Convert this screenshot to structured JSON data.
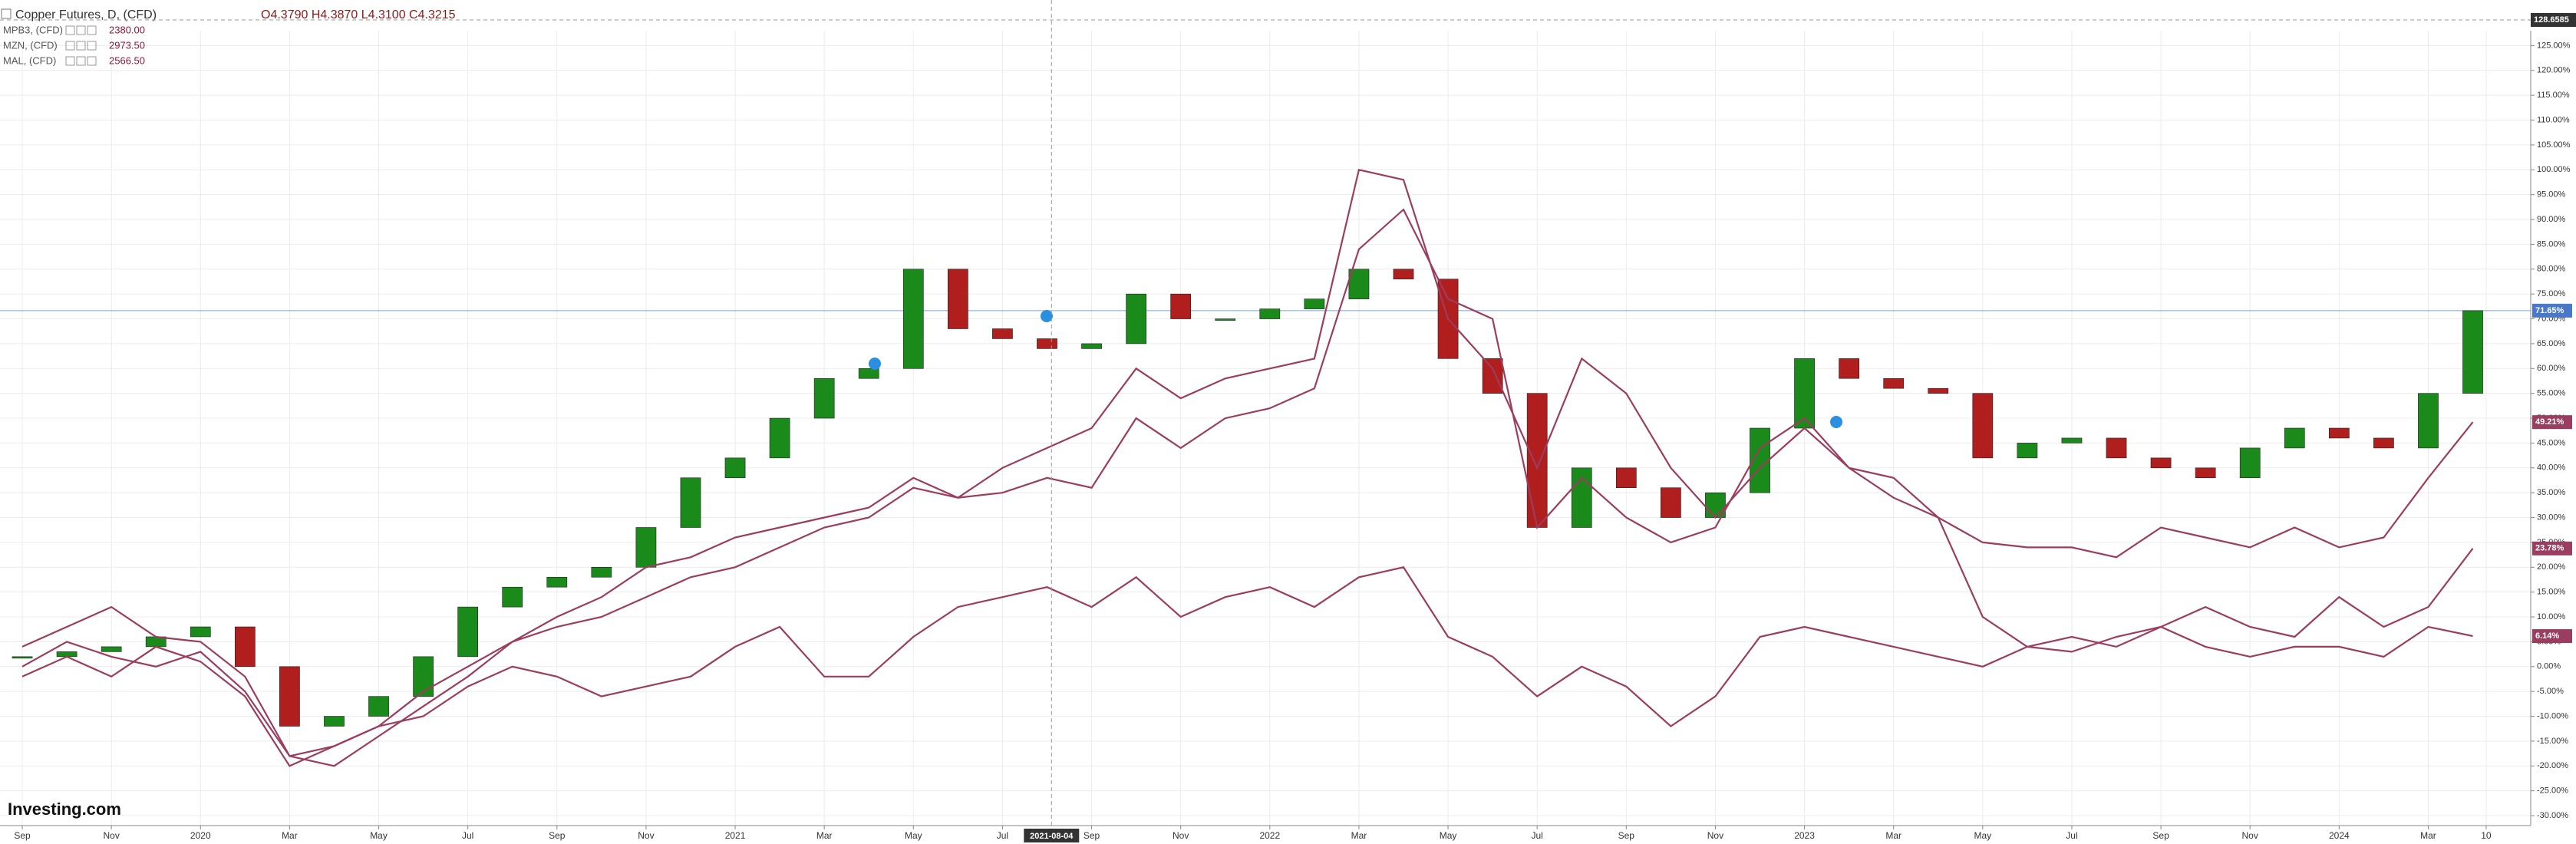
{
  "chart_data": {
    "type": "candle_compare",
    "legend": {
      "main": "Copper Futures, D, (CFD)",
      "ohlc": "O4.3790  H4.3870  L4.3100  C4.3215"
    },
    "crosshair_label": "128.6585",
    "logo": "Investing.com",
    "x": [
      0,
      1,
      2,
      3,
      4,
      5,
      6,
      7,
      8,
      9,
      10,
      11,
      12,
      13,
      14,
      15,
      16,
      17,
      18,
      19,
      20,
      21,
      22,
      23,
      24,
      25,
      26,
      27,
      28,
      29,
      30,
      31,
      32,
      33,
      34,
      35,
      36,
      37,
      38,
      39,
      40,
      41,
      42,
      43,
      44,
      45,
      46,
      47,
      48,
      49,
      50,
      51,
      52,
      53,
      54,
      55
    ],
    "xlim": [
      -0.5,
      56.3
    ],
    "xticks": [
      {
        "value": 0,
        "label": "Sep"
      },
      {
        "value": 2,
        "label": "Nov"
      },
      {
        "value": 4,
        "label": "2020"
      },
      {
        "value": 6,
        "label": "Mar"
      },
      {
        "value": 8,
        "label": "May"
      },
      {
        "value": 10,
        "label": "Jul"
      },
      {
        "value": 12,
        "label": "Sep"
      },
      {
        "value": 14,
        "label": "Nov"
      },
      {
        "value": 16,
        "label": "2021"
      },
      {
        "value": 18,
        "label": "Mar"
      },
      {
        "value": 20,
        "label": "May"
      },
      {
        "value": 22,
        "label": "Jul"
      },
      {
        "value": 23.1,
        "label": "2021-08-04"
      },
      {
        "value": 24,
        "label": "Sep"
      },
      {
        "value": 26,
        "label": "Nov"
      },
      {
        "value": 28,
        "label": "2022"
      },
      {
        "value": 30,
        "label": "Mar"
      },
      {
        "value": 32,
        "label": "May"
      },
      {
        "value": 34,
        "label": "Jul"
      },
      {
        "value": 36,
        "label": "Sep"
      },
      {
        "value": 38,
        "label": "Nov"
      },
      {
        "value": 40,
        "label": "2023"
      },
      {
        "value": 42,
        "label": "Mar"
      },
      {
        "value": 44,
        "label": "May"
      },
      {
        "value": 46,
        "label": "Jul"
      },
      {
        "value": 48,
        "label": "Sep"
      },
      {
        "value": 50,
        "label": "Nov"
      },
      {
        "value": 52,
        "label": "2024"
      },
      {
        "value": 54,
        "label": "Mar"
      },
      {
        "value": 55.3,
        "label": "10"
      }
    ],
    "crosshair_xtick": 12,
    "ylim": [
      -32,
      128
    ],
    "yticks": [
      {
        "value": -30,
        "label": "-30.00%"
      },
      {
        "value": -25,
        "label": "-25.00%"
      },
      {
        "value": -20,
        "label": "-20.00%"
      },
      {
        "value": -15,
        "label": "-15.00%"
      },
      {
        "value": -10,
        "label": "-10.00%"
      },
      {
        "value": -5,
        "label": "-5.00%"
      },
      {
        "value": 0,
        "label": "0.00%"
      },
      {
        "value": 5,
        "label": "5.00%"
      },
      {
        "value": 10,
        "label": "10.00%"
      },
      {
        "value": 15,
        "label": "15.00%"
      },
      {
        "value": 20,
        "label": "20.00%"
      },
      {
        "value": 25,
        "label": "25.00%"
      },
      {
        "value": 30,
        "label": "30.00%"
      },
      {
        "value": 35,
        "label": "35.00%"
      },
      {
        "value": 40,
        "label": "40.00%"
      },
      {
        "value": 45,
        "label": "45.00%"
      },
      {
        "value": 50,
        "label": "50.00%"
      },
      {
        "value": 55,
        "label": "55.00%"
      },
      {
        "value": 60,
        "label": "60.00%"
      },
      {
        "value": 65,
        "label": "65.00%"
      },
      {
        "value": 70,
        "label": "70.00%"
      },
      {
        "value": 75,
        "label": "75.00%"
      },
      {
        "value": 80,
        "label": "80.00%"
      },
      {
        "value": 85,
        "label": "85.00%"
      },
      {
        "value": 90,
        "label": "90.00%"
      },
      {
        "value": 95,
        "label": "95.00%"
      },
      {
        "value": 100,
        "label": "100.00%"
      },
      {
        "value": 105,
        "label": "105.00%"
      },
      {
        "value": 110,
        "label": "110.00%"
      },
      {
        "value": 115,
        "label": "115.00%"
      },
      {
        "value": 120,
        "label": "120.00%"
      },
      {
        "value": 125,
        "label": "125.00%"
      }
    ],
    "grid": true,
    "series": [
      {
        "name": "Copper Futures",
        "style": "candles",
        "up_color": "#1a8a1a",
        "down_color": "#b01e1e",
        "tag_color": "#4a78c8",
        "last_label": "71.65%",
        "values": [
          2,
          3,
          4,
          6,
          8,
          0,
          -12,
          -10,
          -6,
          2,
          12,
          16,
          18,
          20,
          28,
          38,
          42,
          50,
          58,
          60,
          80,
          68,
          66,
          64,
          65,
          75,
          70,
          70,
          72,
          74,
          80,
          78,
          62,
          55,
          28,
          40,
          36,
          30,
          35,
          48,
          62,
          58,
          56,
          55,
          42,
          45,
          46,
          42,
          40,
          38,
          44,
          48,
          46,
          44,
          55,
          71.65
        ]
      },
      {
        "name": "MPB3, (CFD)",
        "price": "2380.00",
        "style": "line",
        "color": "#9b3d5e",
        "last_label": "49.21%",
        "values": [
          4,
          8,
          12,
          6,
          5,
          -2,
          -18,
          -16,
          -12,
          -5,
          0,
          5,
          8,
          10,
          14,
          18,
          20,
          24,
          28,
          30,
          36,
          34,
          40,
          44,
          48,
          60,
          54,
          58,
          60,
          62,
          100,
          98,
          70,
          60,
          40,
          62,
          55,
          40,
          30,
          40,
          48,
          40,
          38,
          30,
          25,
          24,
          24,
          22,
          28,
          26,
          24,
          28,
          24,
          26,
          38,
          49.21
        ]
      },
      {
        "name": "MZN, (CFD)",
        "price": "2973.50",
        "style": "line",
        "color": "#9b3d5e",
        "last_label": "23.78%",
        "values": [
          0,
          5,
          2,
          0,
          3,
          -5,
          -18,
          -20,
          -14,
          -8,
          -2,
          5,
          10,
          14,
          20,
          22,
          26,
          28,
          30,
          32,
          38,
          34,
          35,
          38,
          36,
          50,
          44,
          50,
          52,
          56,
          84,
          92,
          74,
          70,
          28,
          38,
          30,
          25,
          28,
          44,
          50,
          40,
          34,
          30,
          10,
          4,
          3,
          6,
          8,
          12,
          8,
          6,
          14,
          8,
          12,
          23.78
        ]
      },
      {
        "name": "MAL, (CFD)",
        "price": "2566.50",
        "style": "line",
        "color": "#9b3d5e",
        "last_label": "6.14%",
        "values": [
          -2,
          2,
          -2,
          4,
          1,
          -6,
          -20,
          -16,
          -12,
          -10,
          -4,
          0,
          -2,
          -6,
          -4,
          -2,
          4,
          8,
          -2,
          -2,
          6,
          12,
          14,
          16,
          12,
          18,
          10,
          14,
          16,
          12,
          18,
          20,
          6,
          2,
          -6,
          0,
          -4,
          -12,
          -6,
          6,
          8,
          6,
          4,
          2,
          0,
          4,
          6,
          4,
          8,
          4,
          2,
          4,
          4,
          2,
          8,
          6.14
        ]
      }
    ]
  }
}
